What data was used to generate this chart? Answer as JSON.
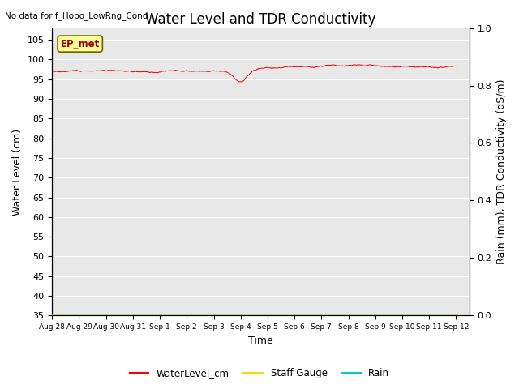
{
  "title": "Water Level and TDR Conductivity",
  "subtitle": "No data for f_Hobo_LowRng_Cond",
  "ylabel_left": "Water Level (cm)",
  "ylabel_right": "Rain (mm), TDR Conductivity (dS/m)",
  "xlabel": "Time",
  "ylim_left": [
    35,
    108
  ],
  "ylim_right": [
    0.0,
    1.0
  ],
  "yticks_left": [
    35,
    40,
    45,
    50,
    55,
    60,
    65,
    70,
    75,
    80,
    85,
    90,
    95,
    100,
    105
  ],
  "yticks_right": [
    0.0,
    0.2,
    0.4,
    0.6,
    0.8,
    1.0
  ],
  "xlim": [
    0,
    15.5
  ],
  "xtick_labels": [
    "Aug 28",
    "Aug 29",
    "Aug 30",
    "Aug 31",
    "Sep 1",
    "Sep 2",
    "Sep 3",
    "Sep 4",
    "Sep 5",
    "Sep 6",
    "Sep 7",
    "Sep 8",
    "Sep 9",
    "Sep 10",
    "Sep 11",
    "Sep 12"
  ],
  "xtick_positions": [
    0,
    1,
    2,
    3,
    4,
    5,
    6,
    7,
    8,
    9,
    10,
    11,
    12,
    13,
    14,
    15
  ],
  "water_level_color": "#FF0000",
  "staff_gauge_color": "#FFD700",
  "rain_color": "#00CCCC",
  "background_color": "#E8E8E8",
  "legend_items": [
    "WaterLevel_cm",
    "Staff Gauge",
    "Rain"
  ],
  "legend_colors": [
    "#FF0000",
    "#FFD700",
    "#00CCCC"
  ],
  "ep_met_text": "EP_met",
  "ep_met_box_color": "#FFFF99",
  "ep_met_text_color": "#990000",
  "ep_met_box_edge": "#666600",
  "title_fontsize": 12,
  "axis_fontsize": 9,
  "tick_fontsize": 8,
  "fig_width": 6.4,
  "fig_height": 4.8,
  "fig_dpi": 100
}
